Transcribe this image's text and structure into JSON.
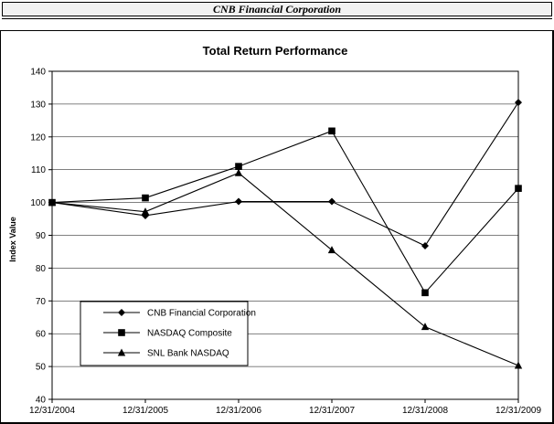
{
  "header": {
    "company": "CNB Financial Corporation"
  },
  "chart_data": {
    "type": "line",
    "title": "Total Return Performance",
    "xlabel": "",
    "ylabel": "Index Value",
    "categories": [
      "12/31/2004",
      "12/31/2005",
      "12/31/2006",
      "12/31/2007",
      "12/31/2008",
      "12/31/2009"
    ],
    "ylim": [
      40,
      140
    ],
    "yticks": [
      40,
      50,
      60,
      70,
      80,
      90,
      100,
      110,
      120,
      130,
      140
    ],
    "grid": true,
    "legend": "bottom-left",
    "series": [
      {
        "name": "CNB Financial Corporation",
        "marker": "diamond",
        "values": [
          100,
          96.0,
          100.3,
          100.3,
          86.8,
          130.5
        ]
      },
      {
        "name": "NASDAQ Composite",
        "marker": "square",
        "values": [
          100,
          101.4,
          111.0,
          121.8,
          72.5,
          104.3
        ]
      },
      {
        "name": "SNL Bank NASDAQ",
        "marker": "triangle",
        "values": [
          100,
          97.2,
          109.0,
          85.5,
          62.1,
          50.3
        ]
      }
    ],
    "colors": {
      "line": "#000000",
      "grid": "#000000"
    }
  }
}
